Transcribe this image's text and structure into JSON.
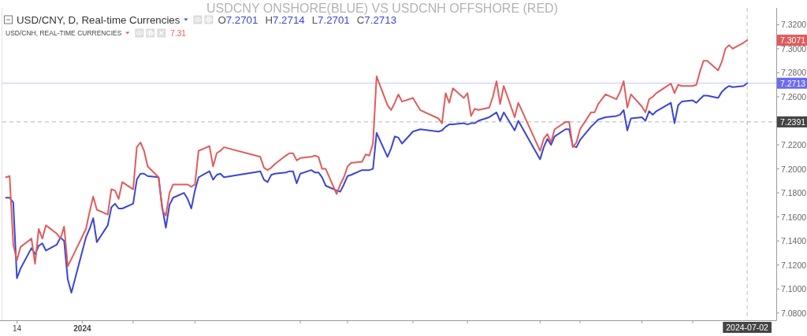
{
  "chart_data": {
    "type": "line",
    "title": "USDCNY ONSHORE(BLUE) VS USDCNH OFFSHORE (RED)",
    "x": [
      "2023-12-11",
      "2023-12-12",
      "2023-12-13",
      "2023-12-14",
      "2023-12-15",
      "2023-12-18",
      "2023-12-19",
      "2023-12-20",
      "2023-12-21",
      "2023-12-22",
      "2023-12-25",
      "2023-12-26",
      "2023-12-27",
      "2023-12-28",
      "2023-12-29",
      "2024-01-02",
      "2024-01-03",
      "2024-01-04",
      "2024-01-05",
      "2024-01-08",
      "2024-01-09",
      "2024-01-10",
      "2024-01-11",
      "2024-01-12",
      "2024-01-15",
      "2024-01-16",
      "2024-01-17",
      "2024-01-18",
      "2024-01-19",
      "2024-01-22",
      "2024-01-23",
      "2024-01-24",
      "2024-01-25",
      "2024-01-26",
      "2024-01-29",
      "2024-01-30",
      "2024-01-31",
      "2024-02-01",
      "2024-02-02",
      "2024-02-05",
      "2024-02-06",
      "2024-02-07",
      "2024-02-08",
      "2024-02-09",
      "2024-02-19",
      "2024-02-20",
      "2024-02-21",
      "2024-02-22",
      "2024-02-23",
      "2024-02-26",
      "2024-02-27",
      "2024-02-28",
      "2024-02-29",
      "2024-03-01",
      "2024-03-04",
      "2024-03-05",
      "2024-03-06",
      "2024-03-07",
      "2024-03-08",
      "2024-03-11",
      "2024-03-12",
      "2024-03-13",
      "2024-03-14",
      "2024-03-15",
      "2024-03-18",
      "2024-03-19",
      "2024-03-20",
      "2024-03-21",
      "2024-03-22",
      "2024-03-25",
      "2024-03-26",
      "2024-03-27",
      "2024-03-28",
      "2024-03-29",
      "2024-04-01",
      "2024-04-02",
      "2024-04-03",
      "2024-04-08",
      "2024-04-09",
      "2024-04-10",
      "2024-04-11",
      "2024-04-12",
      "2024-04-15",
      "2024-04-16",
      "2024-04-17",
      "2024-04-18",
      "2024-04-19",
      "2024-04-22",
      "2024-04-23",
      "2024-04-24",
      "2024-04-25",
      "2024-04-26",
      "2024-04-29",
      "2024-04-30",
      "2024-05-06",
      "2024-05-07",
      "2024-05-08",
      "2024-05-09",
      "2024-05-10",
      "2024-05-13",
      "2024-05-14",
      "2024-05-15",
      "2024-05-16",
      "2024-05-17",
      "2024-05-20",
      "2024-05-21",
      "2024-05-22",
      "2024-05-23",
      "2024-05-24",
      "2024-05-27",
      "2024-05-28",
      "2024-05-29",
      "2024-05-30",
      "2024-05-31",
      "2024-06-03",
      "2024-06-04",
      "2024-06-05",
      "2024-06-06",
      "2024-06-07",
      "2024-06-11",
      "2024-06-12",
      "2024-06-13",
      "2024-06-14",
      "2024-06-17",
      "2024-06-18",
      "2024-06-19",
      "2024-06-20",
      "2024-06-21",
      "2024-06-24",
      "2024-06-25",
      "2024-06-26",
      "2024-06-27",
      "2024-06-28",
      "2024-07-01",
      "2024-07-02"
    ],
    "series": [
      {
        "name": "USD/CNY, D, Real-time Currencies",
        "color": "#3b45d4",
        "values": [
          7.176,
          7.176,
          7.172,
          7.109,
          7.117,
          7.134,
          7.129,
          7.136,
          7.138,
          7.132,
          7.137,
          7.143,
          7.14,
          7.108,
          7.097,
          7.143,
          7.15,
          7.159,
          7.139,
          7.153,
          7.168,
          7.171,
          7.167,
          7.167,
          7.171,
          7.191,
          7.196,
          7.196,
          7.194,
          7.193,
          7.168,
          7.151,
          7.17,
          7.176,
          7.18,
          7.175,
          7.167,
          7.182,
          7.193,
          7.198,
          7.191,
          7.195,
          7.196,
          7.193,
          7.198,
          7.191,
          7.189,
          7.195,
          7.196,
          7.197,
          7.198,
          7.198,
          7.188,
          7.196,
          7.199,
          7.197,
          7.197,
          7.193,
          7.186,
          7.182,
          7.181,
          7.187,
          7.194,
          7.195,
          7.199,
          7.199,
          7.199,
          7.2,
          7.23,
          7.21,
          7.217,
          7.227,
          7.226,
          7.221,
          7.231,
          7.232,
          7.233,
          7.231,
          7.232,
          7.235,
          7.237,
          7.237,
          7.238,
          7.237,
          7.238,
          7.238,
          7.24,
          7.243,
          7.245,
          7.247,
          7.24,
          7.247,
          7.232,
          7.24,
          7.208,
          7.218,
          7.225,
          7.22,
          7.227,
          7.233,
          7.233,
          7.219,
          7.218,
          7.224,
          7.235,
          7.238,
          7.241,
          7.242,
          7.243,
          7.244,
          7.245,
          7.249,
          7.232,
          7.242,
          7.243,
          7.24,
          7.248,
          7.245,
          7.248,
          7.255,
          7.238,
          7.253,
          7.256,
          7.257,
          7.255,
          7.258,
          7.261,
          7.261,
          7.259,
          7.264,
          7.267,
          7.269,
          7.268,
          7.269,
          7.2713
        ]
      },
      {
        "name": "USD/CNH, REAL-TIME CURRENCIES",
        "color": "#e05c5c",
        "values": [
          7.193,
          7.194,
          7.137,
          7.124,
          7.135,
          7.142,
          7.121,
          7.15,
          7.142,
          7.153,
          7.146,
          7.142,
          7.152,
          7.119,
          7.125,
          7.15,
          7.164,
          7.177,
          7.166,
          7.162,
          7.183,
          7.182,
          7.175,
          7.189,
          7.183,
          7.218,
          7.222,
          7.215,
          7.202,
          7.193,
          7.166,
          7.161,
          7.18,
          7.187,
          7.187,
          7.187,
          7.185,
          7.187,
          7.215,
          7.219,
          7.202,
          7.213,
          7.215,
          7.218,
          7.21,
          7.201,
          7.199,
          7.201,
          7.204,
          7.211,
          7.213,
          7.213,
          7.207,
          7.209,
          7.21,
          7.211,
          7.21,
          7.2,
          7.2,
          7.179,
          7.187,
          7.193,
          7.202,
          7.205,
          7.206,
          7.212,
          7.211,
          7.221,
          7.277,
          7.253,
          7.249,
          7.255,
          7.262,
          7.256,
          7.259,
          7.254,
          7.249,
          7.242,
          7.238,
          7.263,
          7.255,
          7.267,
          7.259,
          7.263,
          7.244,
          7.25,
          7.249,
          7.251,
          7.26,
          7.273,
          7.254,
          7.269,
          7.243,
          7.255,
          7.215,
          7.225,
          7.229,
          7.222,
          7.233,
          7.239,
          7.239,
          7.218,
          7.222,
          7.233,
          7.247,
          7.247,
          7.254,
          7.258,
          7.262,
          7.258,
          7.264,
          7.273,
          7.251,
          7.262,
          7.252,
          7.247,
          7.258,
          7.26,
          7.263,
          7.271,
          7.263,
          7.27,
          7.269,
          7.269,
          7.27,
          7.281,
          7.29,
          7.29,
          7.282,
          7.289,
          7.3,
          7.303,
          7.3,
          7.305,
          7.3071
        ]
      }
    ],
    "xlim": [
      "2023-12-10",
      "2024-07-10"
    ],
    "xticks": [
      {
        "value": "2023-12-14",
        "label": "14"
      },
      {
        "value": "2024-01-01",
        "label": "2024"
      },
      {
        "value": "2024-01-15",
        "label": null
      },
      {
        "value": "2024-02-01",
        "label": null
      },
      {
        "value": "2024-03-01",
        "label": null
      },
      {
        "value": "2024-03-14",
        "label": null
      },
      {
        "value": "2024-04-01",
        "label": null
      },
      {
        "value": "2024-04-16",
        "label": null
      },
      {
        "value": "2024-05-06",
        "label": null
      },
      {
        "value": "2024-05-17",
        "label": null
      },
      {
        "value": "2024-06-03",
        "label": null
      },
      {
        "value": "2024-06-17",
        "label": null
      }
    ],
    "ylim": [
      7.074,
      7.334
    ],
    "yticks": [
      {
        "value": 7.08,
        "label": "7.0800"
      },
      {
        "value": 7.1,
        "label": "7.1000"
      },
      {
        "value": 7.12,
        "label": "7.1200"
      },
      {
        "value": 7.14,
        "label": "7.1400"
      },
      {
        "value": 7.16,
        "label": "7.1600"
      },
      {
        "value": 7.18,
        "label": "7.1800"
      },
      {
        "value": 7.2,
        "label": "7.2000"
      },
      {
        "value": 7.22,
        "label": "7.2200"
      },
      {
        "value": 7.26,
        "label": "7.2600"
      },
      {
        "value": 7.28,
        "label": "7.2800"
      },
      {
        "value": 7.3,
        "label": "7.3000"
      },
      {
        "value": 7.32,
        "label": "7.3200"
      }
    ],
    "ref_lines": [
      {
        "axis": "y",
        "value": 7.2713,
        "label": "7.2713",
        "color": "#6b6bef"
      },
      {
        "axis": "y",
        "value": 7.2391,
        "label": "7.2391",
        "color": "#444444",
        "line_style": "dashed"
      },
      {
        "axis": "x",
        "value": "2024-07-02",
        "label": "2024-07-02",
        "color": "#444444",
        "line_style": "dashed"
      }
    ],
    "annotations": [
      "O7.2701 H7.2714 L7.2701 C7.2713",
      "7.31",
      "7.3071"
    ],
    "legend": "top left"
  }
}
